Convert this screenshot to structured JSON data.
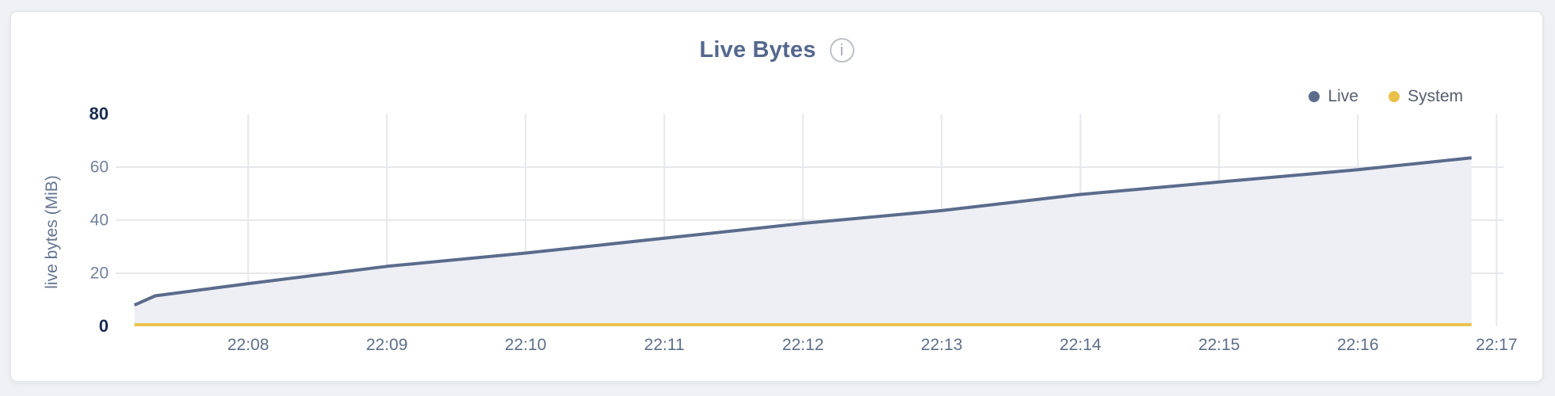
{
  "card": {
    "title": "Live Bytes",
    "info_symbol": "i"
  },
  "legend": [
    {
      "label": "Live",
      "color": "#5d6b8c"
    },
    {
      "label": "System",
      "color": "#e9c04a"
    }
  ],
  "colors": {
    "page_background": "#eff1f4",
    "card_background": "#ffffff",
    "card_border": "#e6e8ec",
    "grid": "#e7e8ec",
    "live_line": "#5b6b8c",
    "live_fill": "#edeff5",
    "system_line": "#ebc24f",
    "title_text": "#54678d",
    "x_tick_text": "#5d6f88",
    "y_tick_text": "#72819c",
    "y_tick_bold_text": "#1a2d51",
    "axis_title_text": "#64748f",
    "info_icon": "#bcc0c7"
  },
  "chart_data": {
    "type": "area",
    "title": "Live Bytes",
    "xlabel": "",
    "ylabel": "live bytes (MiB)",
    "ylim": [
      0,
      80
    ],
    "x_domain_minutes_after_2200": [
      7.045,
      17.05
    ],
    "grid": true,
    "legend_position": "top-right",
    "y_ticks": [
      {
        "value": 0,
        "label": "0",
        "bold": true
      },
      {
        "value": 20,
        "label": "20",
        "bold": false
      },
      {
        "value": 40,
        "label": "40",
        "bold": false
      },
      {
        "value": 60,
        "label": "60",
        "bold": false
      },
      {
        "value": 80,
        "label": "80",
        "bold": true
      }
    ],
    "y_gridline_values": [
      20,
      40,
      60
    ],
    "x_ticks": [
      {
        "minute": 8,
        "label": "22:08"
      },
      {
        "minute": 9,
        "label": "22:09"
      },
      {
        "minute": 10,
        "label": "22:10"
      },
      {
        "minute": 11,
        "label": "22:11"
      },
      {
        "minute": 12,
        "label": "22:12"
      },
      {
        "minute": 13,
        "label": "22:13"
      },
      {
        "minute": 14,
        "label": "22:14"
      },
      {
        "minute": 15,
        "label": "22:15"
      },
      {
        "minute": 16,
        "label": "22:16"
      },
      {
        "minute": 17,
        "label": "22:17"
      }
    ],
    "series": [
      {
        "name": "Live",
        "color": "#5b6b8c",
        "fill": "#edeff5",
        "points": [
          [
            7.18,
            8.0
          ],
          [
            7.33,
            11.5
          ],
          [
            8,
            16.1
          ],
          [
            9,
            22.6
          ],
          [
            10,
            27.6
          ],
          [
            11,
            33.2
          ],
          [
            12,
            38.8
          ],
          [
            13,
            43.6
          ],
          [
            14,
            49.7
          ],
          [
            15,
            54.4
          ],
          [
            16,
            59.0
          ],
          [
            16.82,
            63.5
          ]
        ]
      },
      {
        "name": "System",
        "color": "#ebc24f",
        "fill": null,
        "points": [
          [
            7.18,
            0.6
          ],
          [
            16.82,
            0.6
          ]
        ]
      }
    ]
  }
}
